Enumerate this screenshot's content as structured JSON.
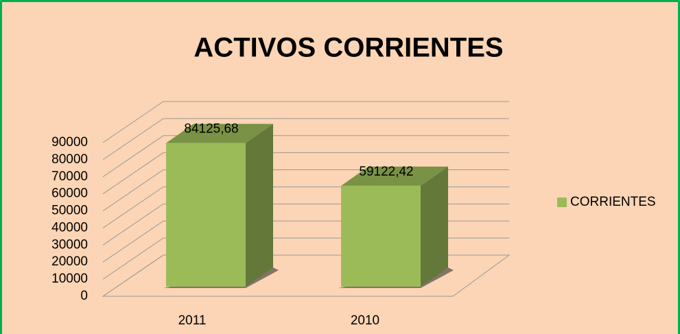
{
  "chart_data": {
    "type": "bar3d",
    "title": "ACTIVOS CORRIENTES",
    "categories": [
      "2011",
      "2010"
    ],
    "series": [
      {
        "name": "CORRIENTES",
        "color": "#9bbb59",
        "values": [
          84125.68,
          59122.42
        ],
        "value_labels": [
          "84125,68",
          "59122,42"
        ]
      }
    ],
    "ylim": [
      0,
      90000
    ],
    "yticks": [
      0,
      10000,
      20000,
      30000,
      40000,
      50000,
      60000,
      70000,
      80000,
      90000
    ],
    "grid": true,
    "legend": "right"
  }
}
